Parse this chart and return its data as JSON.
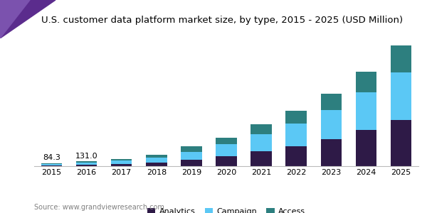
{
  "title": "U.S. customer data platform market size, by type, 2015 - 2025 (USD Million)",
  "years": [
    2015,
    2016,
    2017,
    2018,
    2019,
    2020,
    2021,
    2022,
    2023,
    2024,
    2025
  ],
  "analytics": [
    25,
    38,
    58,
    95,
    170,
    265,
    400,
    540,
    720,
    960,
    1230
  ],
  "campaign": [
    38,
    58,
    85,
    125,
    215,
    315,
    460,
    600,
    780,
    1010,
    1270
  ],
  "access": [
    21,
    35,
    52,
    80,
    140,
    185,
    255,
    340,
    440,
    560,
    730
  ],
  "annotations": {
    "2015": "84.3",
    "2016": "131.0"
  },
  "colors": {
    "analytics": "#2E1A47",
    "campaign": "#5BC8F5",
    "access": "#2D7F7F"
  },
  "legend_labels": [
    "Analytics",
    "Campaign",
    "Access"
  ],
  "source_text": "Source: www.grandviewresearch.com",
  "title_fontsize": 9.5,
  "label_fontsize": 8,
  "tick_fontsize": 8,
  "source_fontsize": 7,
  "bg_color": "#FFFFFF",
  "title_bg_color": "#F0EEF5",
  "triangle_color1": "#5B2C8D",
  "triangle_color2": "#7B52AE",
  "ylim": [
    0,
    3300
  ]
}
